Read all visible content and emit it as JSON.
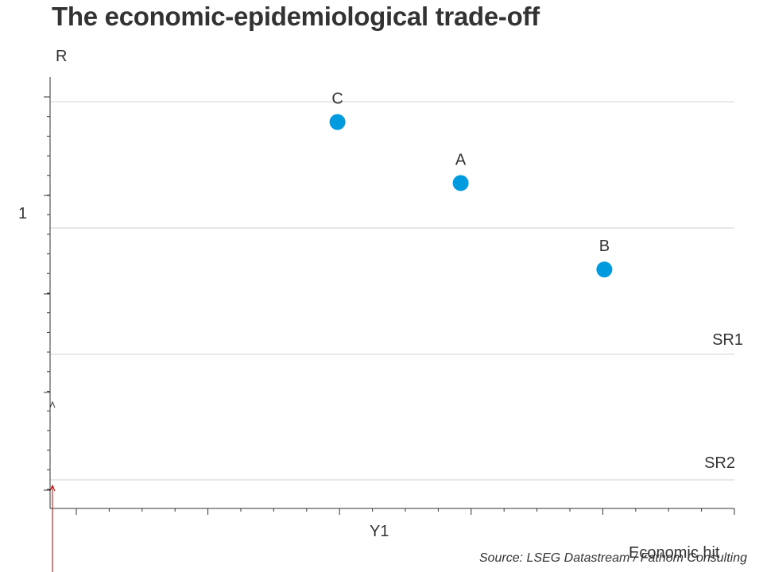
{
  "chart_data": {
    "type": "scatter",
    "title": "The economic-epidemiological trade-off",
    "ylabel": "R",
    "xlabel": "Economic hit",
    "y_tick_label": "1",
    "x_tick_label": "Y1",
    "xlim": [
      0,
      10
    ],
    "ylim": [
      0,
      2
    ],
    "y_marker_value": 1,
    "x_marker_value": 5,
    "points": [
      {
        "label": "C",
        "x": 4.2,
        "y": 1.52
      },
      {
        "label": "A",
        "x": 6.0,
        "y": 1.28
      },
      {
        "label": "B",
        "x": 8.1,
        "y": 0.94
      }
    ],
    "lines": [
      {
        "label": "SR1",
        "y": 0.62
      },
      {
        "label": "SR2",
        "y": 0.12
      }
    ],
    "grid": true,
    "point_color": "#009ADE",
    "grid_color": "#D2D2D2",
    "axis_color": "#333333",
    "arrow_color": "#C00000",
    "source": "Source: LSEG Datastream / Fathom Consulting"
  }
}
